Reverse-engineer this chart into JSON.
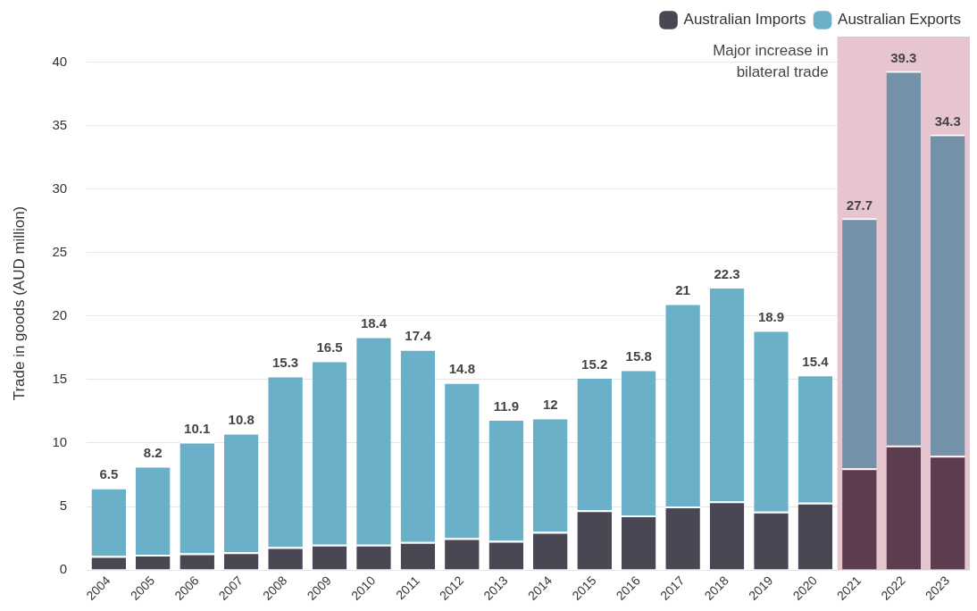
{
  "chart_data": {
    "type": "bar",
    "stacked": true,
    "ylabel": "Trade in goods (AUD million)",
    "categories": [
      "2004",
      "2005",
      "2006",
      "2007",
      "2008",
      "2009",
      "2010",
      "2011",
      "2012",
      "2013",
      "2014",
      "2015",
      "2016",
      "2017",
      "2018",
      "2019",
      "2020",
      "2021",
      "2022",
      "2023"
    ],
    "series": [
      {
        "name": "Australian Imports",
        "color": "#4a4754",
        "colors": [
          "#4a4754",
          "#4a4754",
          "#4a4754",
          "#4a4754",
          "#4a4754",
          "#4a4754",
          "#4a4754",
          "#4a4754",
          "#4a4754",
          "#4a4754",
          "#4a4754",
          "#4a4754",
          "#4a4754",
          "#4a4754",
          "#4a4754",
          "#4a4754",
          "#4a4754",
          "#5c3d4f",
          "#5c3d4f",
          "#5c3d4f"
        ],
        "values": [
          1.1,
          1.2,
          1.3,
          1.4,
          1.8,
          2.0,
          2.0,
          2.2,
          2.5,
          2.3,
          3.0,
          4.7,
          4.3,
          5.0,
          5.4,
          4.6,
          5.3,
          8.0,
          9.8,
          9.0
        ]
      },
      {
        "name": "Australian Exports",
        "color": "#6ab0c8",
        "colors": [
          "#6ab0c8",
          "#6ab0c8",
          "#6ab0c8",
          "#6ab0c8",
          "#6ab0c8",
          "#6ab0c8",
          "#6ab0c8",
          "#6ab0c8",
          "#6ab0c8",
          "#6ab0c8",
          "#6ab0c8",
          "#6ab0c8",
          "#6ab0c8",
          "#6ab0c8",
          "#6ab0c8",
          "#6ab0c8",
          "#6ab0c8",
          "#7392aa",
          "#7392aa",
          "#7392aa"
        ],
        "values": [
          5.4,
          7.0,
          8.8,
          9.4,
          13.5,
          14.5,
          16.4,
          15.2,
          12.3,
          9.6,
          9.0,
          10.5,
          11.5,
          16.0,
          16.9,
          14.3,
          10.1,
          19.7,
          29.5,
          25.3
        ]
      }
    ],
    "totals": [
      "6.5",
      "8.2",
      "10.1",
      "10.8",
      "15.3",
      "16.5",
      "18.4",
      "17.4",
      "14.8",
      "11.9",
      "12",
      "15.2",
      "15.8",
      "21",
      "22.3",
      "18.9",
      "15.4",
      "27.7",
      "39.3",
      "34.3"
    ],
    "bands": [
      {
        "axis": "x",
        "from": "2021",
        "to": "2023",
        "label": "Major increase in bilateral trade",
        "color": "#e6c5cf"
      }
    ],
    "ylim": [
      0,
      42
    ],
    "yticks": [
      0,
      5,
      10,
      15,
      20,
      25,
      30,
      35,
      40
    ],
    "grid": "y",
    "legend": "top right"
  }
}
